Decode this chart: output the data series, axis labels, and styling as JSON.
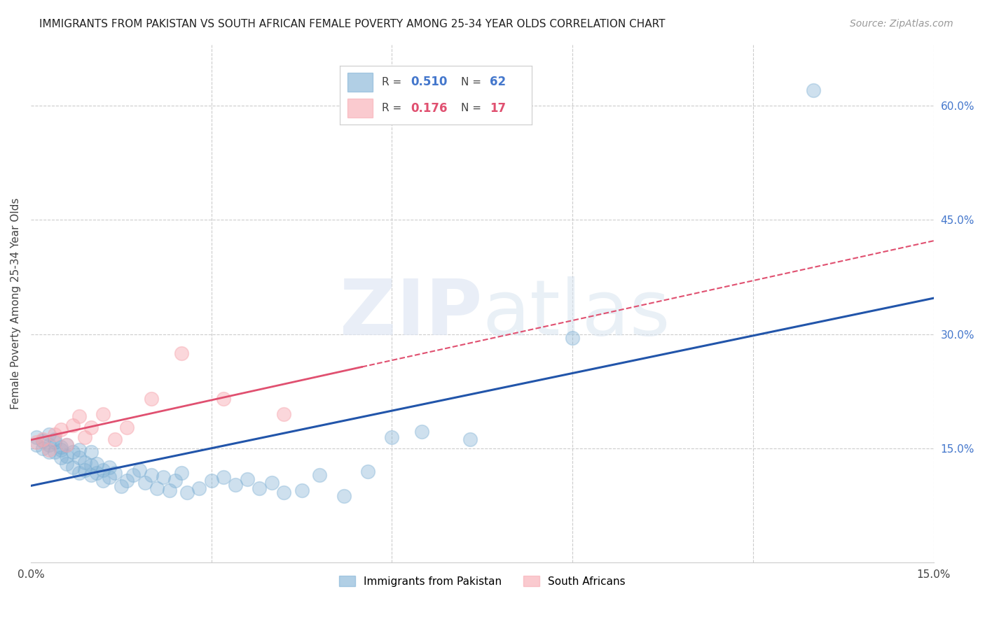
{
  "title": "IMMIGRANTS FROM PAKISTAN VS SOUTH AFRICAN FEMALE POVERTY AMONG 25-34 YEAR OLDS CORRELATION CHART",
  "source": "Source: ZipAtlas.com",
  "ylabel": "Female Poverty Among 25-34 Year Olds",
  "xlim": [
    0.0,
    0.15
  ],
  "ylim": [
    0.0,
    0.68
  ],
  "y_ticks_right": [
    0.15,
    0.3,
    0.45,
    0.6
  ],
  "y_tick_labels_right": [
    "15.0%",
    "30.0%",
    "45.0%",
    "60.0%"
  ],
  "blue_color": "#7EB0D4",
  "pink_color": "#F7A8B0",
  "blue_line_color": "#2255AA",
  "pink_line_color": "#E05070",
  "background_color": "#FFFFFF",
  "grid_color": "#CCCCCC",
  "pakistan_x": [
    0.001,
    0.001,
    0.002,
    0.002,
    0.003,
    0.003,
    0.003,
    0.004,
    0.004,
    0.004,
    0.005,
    0.005,
    0.005,
    0.006,
    0.006,
    0.006,
    0.007,
    0.007,
    0.008,
    0.008,
    0.008,
    0.009,
    0.009,
    0.01,
    0.01,
    0.01,
    0.011,
    0.011,
    0.012,
    0.012,
    0.013,
    0.013,
    0.014,
    0.015,
    0.016,
    0.017,
    0.018,
    0.019,
    0.02,
    0.021,
    0.022,
    0.023,
    0.024,
    0.025,
    0.026,
    0.028,
    0.03,
    0.032,
    0.034,
    0.036,
    0.038,
    0.04,
    0.042,
    0.045,
    0.048,
    0.052,
    0.056,
    0.06,
    0.065,
    0.073,
    0.09,
    0.13
  ],
  "pakistan_y": [
    0.155,
    0.165,
    0.15,
    0.16,
    0.145,
    0.155,
    0.168,
    0.158,
    0.145,
    0.162,
    0.148,
    0.138,
    0.152,
    0.14,
    0.155,
    0.13,
    0.145,
    0.125,
    0.118,
    0.138,
    0.148,
    0.122,
    0.132,
    0.115,
    0.128,
    0.145,
    0.118,
    0.13,
    0.108,
    0.122,
    0.112,
    0.125,
    0.118,
    0.1,
    0.108,
    0.115,
    0.122,
    0.105,
    0.115,
    0.098,
    0.112,
    0.095,
    0.108,
    0.118,
    0.092,
    0.098,
    0.108,
    0.112,
    0.102,
    0.11,
    0.098,
    0.105,
    0.092,
    0.095,
    0.115,
    0.088,
    0.12,
    0.165,
    0.172,
    0.162,
    0.295,
    0.62
  ],
  "southafrican_x": [
    0.001,
    0.002,
    0.003,
    0.004,
    0.005,
    0.006,
    0.007,
    0.008,
    0.009,
    0.01,
    0.012,
    0.014,
    0.016,
    0.02,
    0.025,
    0.032,
    0.042
  ],
  "southafrican_y": [
    0.158,
    0.162,
    0.148,
    0.168,
    0.175,
    0.155,
    0.18,
    0.192,
    0.165,
    0.178,
    0.195,
    0.162,
    0.178,
    0.215,
    0.275,
    0.215,
    0.195
  ],
  "pink_line_x_solid_end": 0.055,
  "pink_line_x_dashed_start": 0.055
}
